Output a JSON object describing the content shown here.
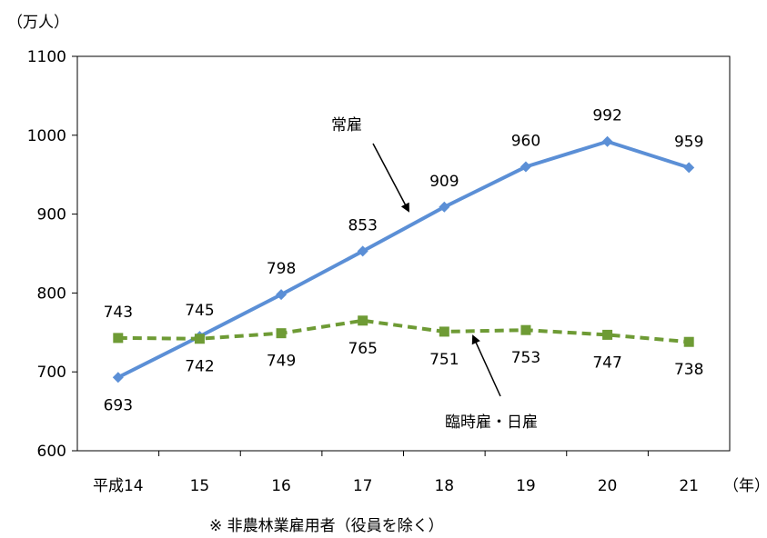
{
  "chart_data": {
    "type": "line",
    "y_unit": "（万人）",
    "x_unit": "（年）",
    "ylim": [
      600,
      1100
    ],
    "yticks": [
      600,
      700,
      800,
      900,
      1000,
      1100
    ],
    "categories": [
      "平成14",
      "15",
      "16",
      "17",
      "18",
      "19",
      "20",
      "21"
    ],
    "grid": false,
    "series": [
      {
        "name": "常雇",
        "color": "#5B8FD6",
        "marker": "diamond",
        "dash": "solid",
        "values": [
          693,
          745,
          798,
          853,
          909,
          960,
          992,
          959
        ],
        "label_offsets": [
          30,
          -23,
          -23,
          -23,
          -23,
          -23,
          -23,
          -23
        ]
      },
      {
        "name": "臨時雇・日雇",
        "color": "#6E9B35",
        "marker": "square",
        "dash": "dashed",
        "values": [
          743,
          742,
          749,
          765,
          751,
          753,
          747,
          738
        ],
        "label_offsets": [
          -23,
          30,
          30,
          30,
          30,
          30,
          30,
          30
        ]
      }
    ],
    "footnote": "※ 非農林業雇用者（役員を除く）"
  }
}
